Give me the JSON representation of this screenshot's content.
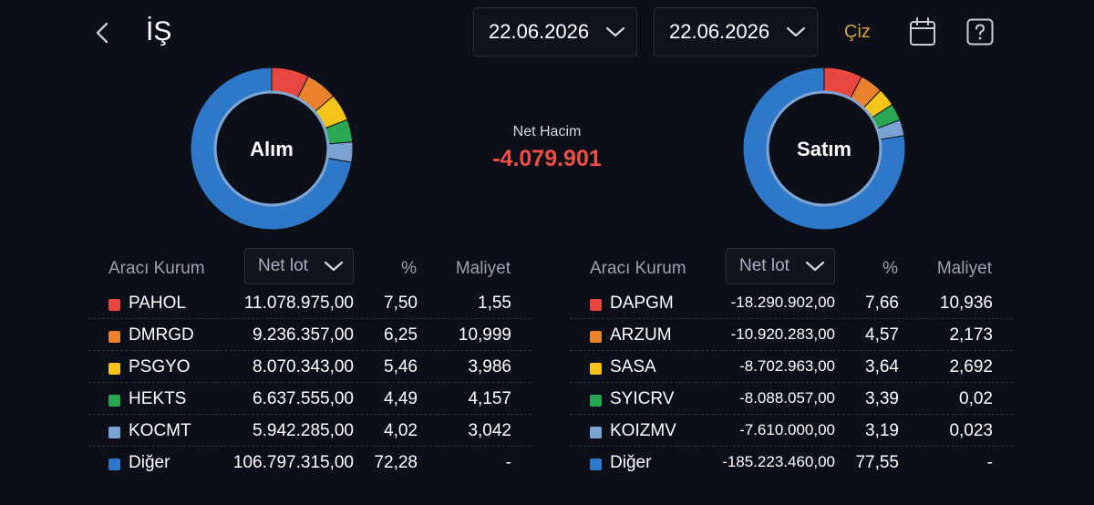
{
  "header": {
    "title": "İŞ",
    "start_date": "22.06.2026",
    "end_date": "22.06.2026",
    "draw_label": "Çiz"
  },
  "summary": {
    "net_volume_label": "Net Hacim",
    "net_volume_value": "-4.079.901"
  },
  "colors": {
    "accent_gold": "#d5a23d",
    "negative": "#ee4e46",
    "series": [
      "#e8473f",
      "#e9812f",
      "#f4c31c",
      "#29a751",
      "#7aa3d4",
      "#2e78c9"
    ]
  },
  "buy": {
    "donut_label": "Alım",
    "columns": {
      "name": "Aracı Kurum",
      "metric": "Net lot",
      "pct": "%",
      "cost": "Maliyet"
    },
    "rows": [
      {
        "name": "PAHOL",
        "lot": "11.078.975,00",
        "pct": "7,50",
        "cost": "1,55",
        "share": 7.5
      },
      {
        "name": "DMRGD",
        "lot": "9.236.357,00",
        "pct": "6,25",
        "cost": "10,999",
        "share": 6.25
      },
      {
        "name": "PSGYO",
        "lot": "8.070.343,00",
        "pct": "5,46",
        "cost": "3,986",
        "share": 5.46
      },
      {
        "name": "HEKTS",
        "lot": "6.637.555,00",
        "pct": "4,49",
        "cost": "4,157",
        "share": 4.49
      },
      {
        "name": "KOCMT",
        "lot": "5.942.285,00",
        "pct": "4,02",
        "cost": "3,042",
        "share": 4.02
      },
      {
        "name": "Diğer",
        "lot": "106.797.315,00",
        "pct": "72,28",
        "cost": "-",
        "share": 72.28
      }
    ]
  },
  "sell": {
    "donut_label": "Satım",
    "columns": {
      "name": "Aracı Kurum",
      "metric": "Net lot",
      "pct": "%",
      "cost": "Maliyet"
    },
    "rows": [
      {
        "name": "DAPGM",
        "lot": "-18.290.902,00",
        "pct": "7,66",
        "cost": "10,936",
        "share": 7.66
      },
      {
        "name": "ARZUM",
        "lot": "-10.920.283,00",
        "pct": "4,57",
        "cost": "2,173",
        "share": 4.57
      },
      {
        "name": "SASA",
        "lot": "-8.702.963,00",
        "pct": "3,64",
        "cost": "2,692",
        "share": 3.64
      },
      {
        "name": "SYICRV",
        "lot": "-8.088.057,00",
        "pct": "3,39",
        "cost": "0,02",
        "share": 3.39
      },
      {
        "name": "KOIZMV",
        "lot": "-7.610.000,00",
        "pct": "3,19",
        "cost": "0,023",
        "share": 3.19
      },
      {
        "name": "Diğer",
        "lot": "-185.223.460,00",
        "pct": "77,55",
        "cost": "-",
        "share": 77.55
      }
    ]
  }
}
